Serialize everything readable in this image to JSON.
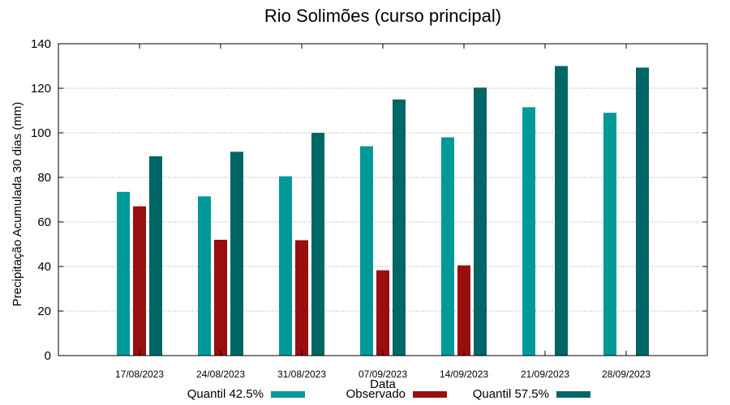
{
  "chart_data": {
    "type": "bar",
    "title": "Rio Solimões (curso principal)",
    "xlabel": "Data",
    "ylabel": "Precipitação Acumulada 30 dias (mm)",
    "ylim": [
      0,
      140
    ],
    "yticks": [
      0,
      20,
      40,
      60,
      80,
      100,
      120,
      140
    ],
    "grid": true,
    "legend_position": "bottom",
    "categories": [
      "17/08/2023",
      "24/08/2023",
      "31/08/2023",
      "07/09/2023",
      "14/09/2023",
      "21/09/2023",
      "28/09/2023"
    ],
    "series": [
      {
        "name": "Quantil 42.5%",
        "color": "#009999",
        "values": [
          73.5,
          71.5,
          80.5,
          94,
          98,
          111.5,
          109
        ]
      },
      {
        "name": "Observado",
        "color": "#990f0f",
        "values": [
          67,
          52,
          51.8,
          38.3,
          40.5,
          null,
          null
        ]
      },
      {
        "name": "Quantil 57.5%",
        "color": "#006666",
        "values": [
          89.5,
          91.5,
          100,
          115,
          120.3,
          130,
          129.3
        ]
      }
    ]
  }
}
